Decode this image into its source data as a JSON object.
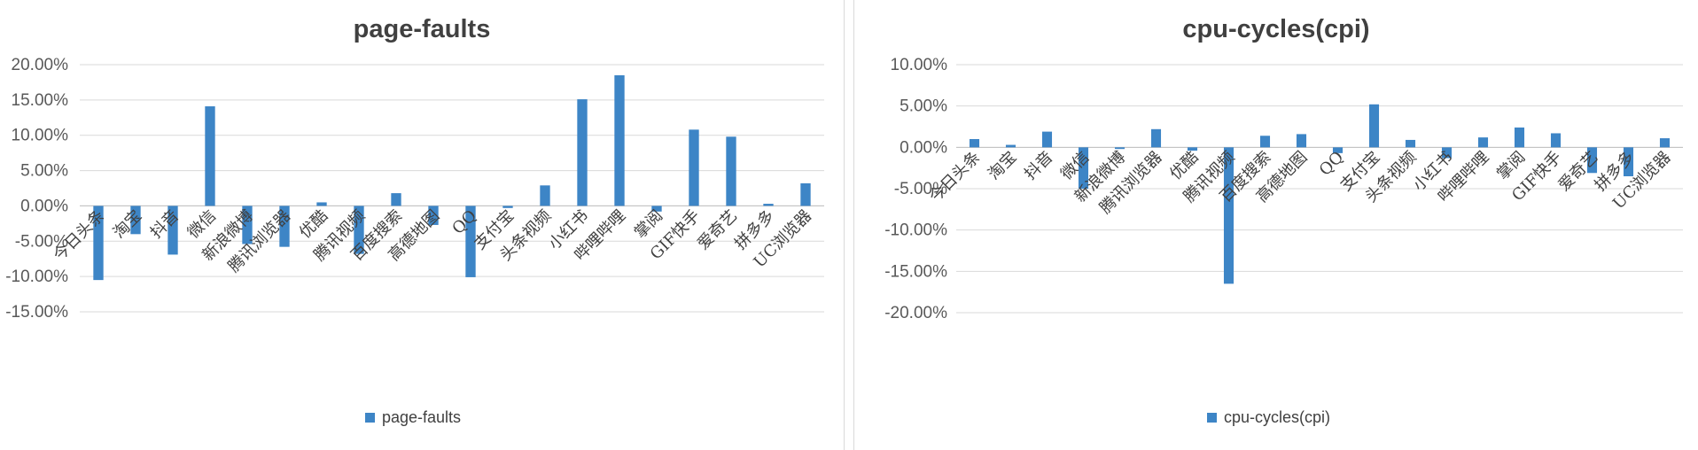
{
  "chart_data": [
    {
      "type": "bar",
      "title": "page-faults",
      "xlabel": "",
      "ylabel": "",
      "ylim": [
        -0.15,
        0.2
      ],
      "y_ticks": [
        "20.00%",
        "15.00%",
        "10.00%",
        "5.00%",
        "0.00%",
        "-5.00%",
        "-10.00%",
        "-15.00%"
      ],
      "grid": true,
      "legend_position": "bottom",
      "categories": [
        "今日头条",
        "淘宝",
        "抖音",
        "微信",
        "新浪微博",
        "腾讯浏览器",
        "优酷",
        "腾讯视频",
        "百度搜索",
        "高德地图",
        "QQ",
        "支付宝",
        "头条视频",
        "小红书",
        "哔哩哔哩",
        "掌阅",
        "GIF快手",
        "爱奇艺",
        "拼多多",
        "UC浏览器"
      ],
      "series": [
        {
          "name": "page-faults",
          "color": "#3d85c6",
          "values": [
            -0.105,
            -0.04,
            -0.069,
            0.141,
            -0.054,
            -0.058,
            0.005,
            -0.068,
            0.018,
            -0.027,
            -0.101,
            -0.003,
            0.029,
            0.151,
            0.185,
            -0.008,
            0.108,
            0.098,
            0.003,
            0.032
          ]
        }
      ]
    },
    {
      "type": "bar",
      "title": "cpu-cycles(cpi)",
      "xlabel": "",
      "ylabel": "",
      "ylim": [
        -0.2,
        0.1
      ],
      "y_ticks": [
        "10.00%",
        "5.00%",
        "0.00%",
        "-5.00%",
        "-10.00%",
        "-15.00%",
        "-20.00%"
      ],
      "grid": true,
      "legend_position": "bottom",
      "categories": [
        "今日头条",
        "淘宝",
        "抖音",
        "微信",
        "新浪微博",
        "腾讯浏览器",
        "优酷",
        "腾讯视频",
        "百度搜索",
        "高德地图",
        "QQ",
        "支付宝",
        "头条视频",
        "小红书",
        "哔哩哔哩",
        "掌阅",
        "GIF快手",
        "爱奇艺",
        "拼多多",
        "UC浏览器"
      ],
      "series": [
        {
          "name": "cpu-cycles(cpi)",
          "color": "#3d85c6",
          "values": [
            0.01,
            0.003,
            0.019,
            -0.05,
            -0.002,
            0.022,
            -0.004,
            -0.165,
            0.014,
            0.016,
            -0.007,
            0.052,
            0.009,
            -0.013,
            0.012,
            0.024,
            0.017,
            -0.031,
            -0.035,
            0.011
          ]
        }
      ]
    }
  ]
}
